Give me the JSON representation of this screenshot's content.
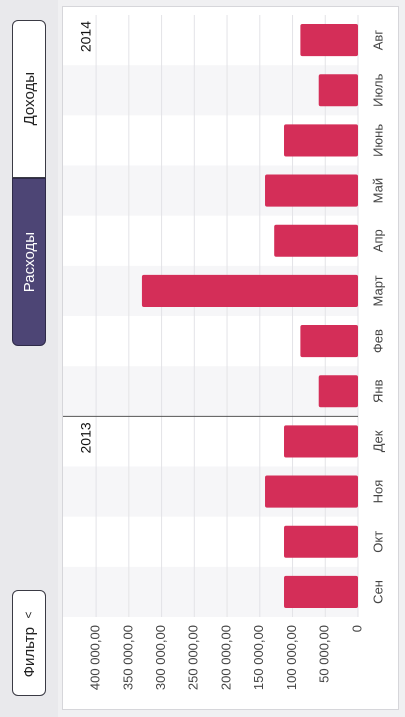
{
  "sidebar": {
    "income_label": "Доходы",
    "expense_label": "Расходы",
    "filter_label": "Фильтр",
    "active_tab": "expense"
  },
  "colors": {
    "bar": "#d42e58",
    "active_tab": "#4d4575",
    "grid": "#e3e3e7"
  },
  "chart_data": {
    "type": "bar",
    "orientation": "horizontal",
    "categories": [
      "Сен",
      "Окт",
      "Ноя",
      "Дек",
      "Янв",
      "Фев",
      "Март",
      "Апр",
      "Май",
      "Июнь",
      "Июль",
      "Авг"
    ],
    "values": [
      113000,
      113000,
      142000,
      113000,
      60000,
      88000,
      330000,
      128000,
      142000,
      113000,
      60000,
      88000
    ],
    "year_labels": [
      {
        "label": "2013",
        "start_index": 0
      },
      {
        "label": "2014",
        "start_index": 4
      }
    ],
    "value_ticks": [
      "0",
      "50 000,00",
      "100 000,00",
      "150 000,00",
      "200 000,00",
      "250 000,00",
      "300 000,00",
      "350 000,00",
      "400 000,00"
    ],
    "tick_values": [
      0,
      50000,
      100000,
      150000,
      200000,
      250000,
      300000,
      350000,
      400000
    ],
    "xlim": [
      0,
      420000
    ],
    "grid": true
  }
}
